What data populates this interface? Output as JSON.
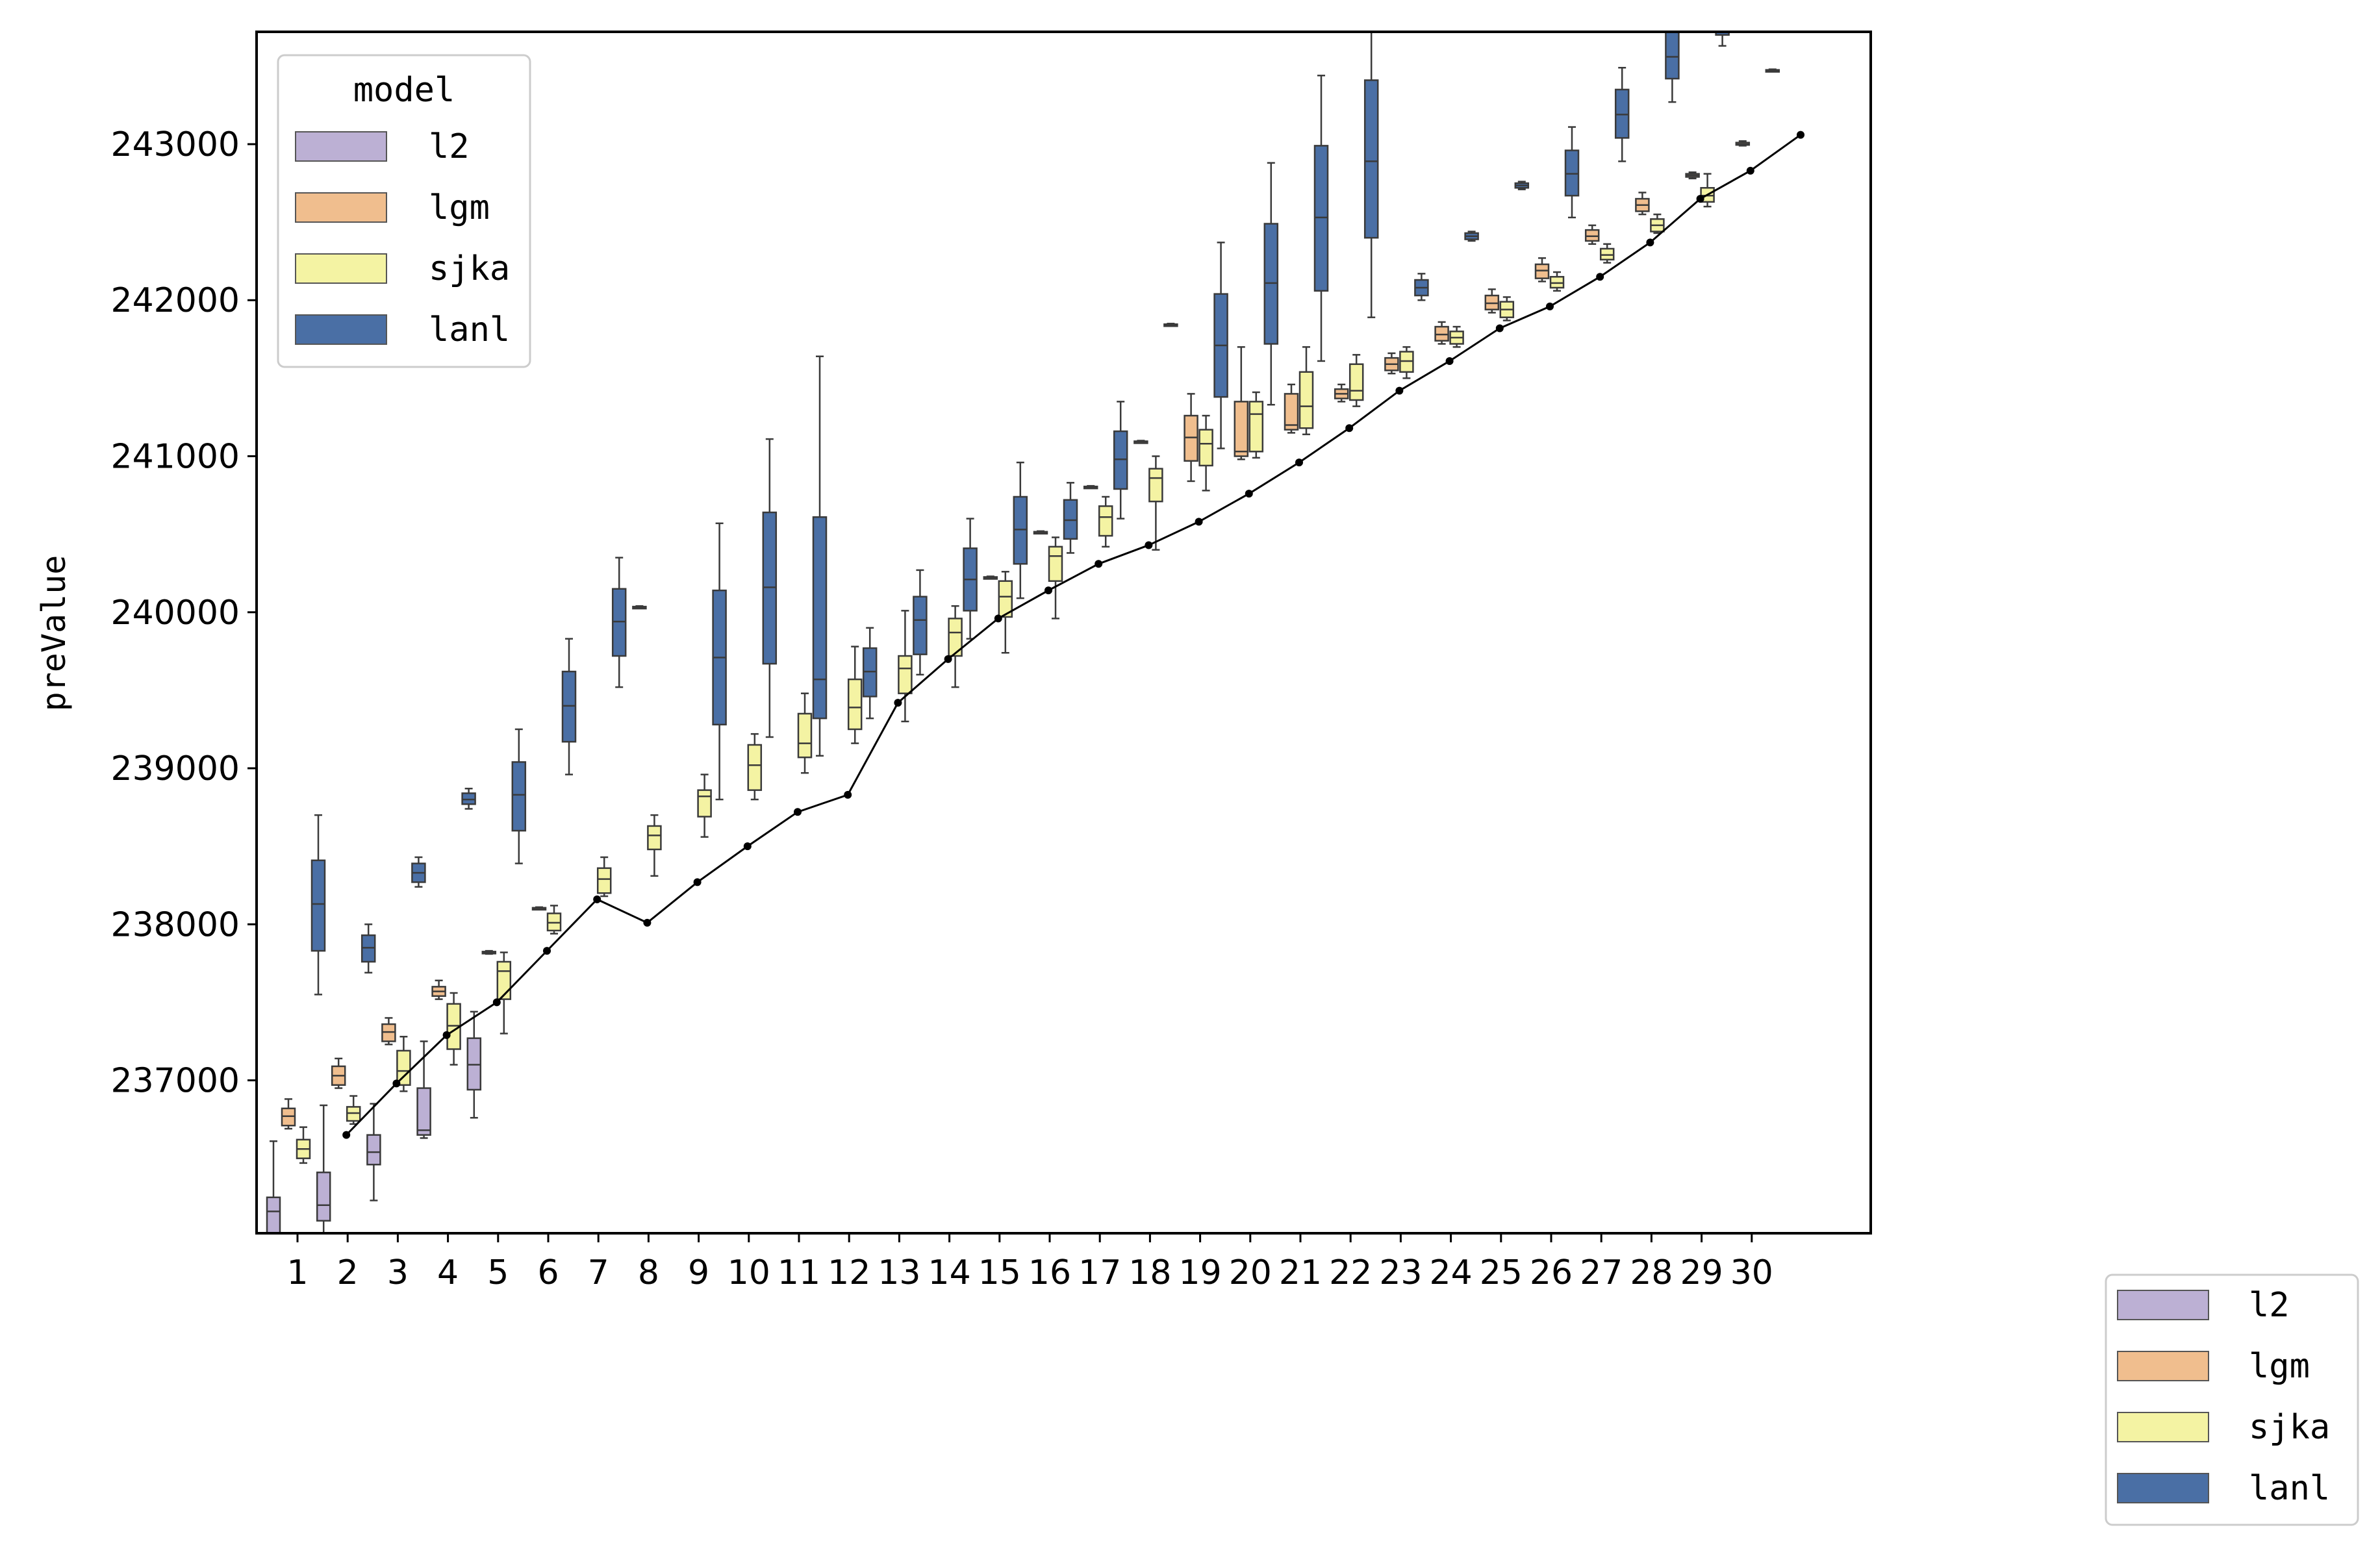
{
  "chart_data": {
    "type": "box",
    "xlabel": "",
    "ylabel": "preValue",
    "ylim": [
      236020,
      243720
    ],
    "yticks": [
      237000,
      238000,
      239000,
      240000,
      241000,
      242000,
      243000
    ],
    "categories": [
      "1",
      "2",
      "3",
      "4",
      "5",
      "6",
      "7",
      "8",
      "9",
      "10",
      "11",
      "12",
      "13",
      "14",
      "15",
      "16",
      "17",
      "18",
      "19",
      "20",
      "21",
      "22",
      "23",
      "24",
      "25",
      "26",
      "27",
      "28",
      "29",
      "30"
    ],
    "legend": {
      "title": "model",
      "placement": "top-left"
    },
    "legend2": {
      "placement": "outside-bottom-right"
    },
    "series": [
      {
        "name": "l2",
        "color": "#bcb0d4",
        "boxes": [
          {
            "x": 1,
            "min": 236000,
            "q1": 236020,
            "median": 236160,
            "q3": 236250,
            "max": 236610
          },
          {
            "x": 2,
            "min": 235990,
            "q1": 236100,
            "median": 236200,
            "q3": 236410,
            "max": 236840
          },
          {
            "x": 3,
            "min": 236230,
            "q1": 236460,
            "median": 236540,
            "q3": 236650,
            "max": 236850
          },
          {
            "x": 4,
            "min": 236630,
            "q1": 236650,
            "median": 236680,
            "q3": 236950,
            "max": 237250
          },
          {
            "x": 5,
            "min": 236760,
            "q1": 236940,
            "median": 237100,
            "q3": 237270,
            "max": 237440
          }
        ]
      },
      {
        "name": "lgm",
        "color": "#f0be8e",
        "boxes": [
          {
            "x": 1,
            "min": 236690,
            "q1": 236710,
            "median": 236770,
            "q3": 236820,
            "max": 236880
          },
          {
            "x": 2,
            "min": 236950,
            "q1": 236970,
            "median": 237030,
            "q3": 237090,
            "max": 237140
          },
          {
            "x": 3,
            "min": 237230,
            "q1": 237250,
            "median": 237310,
            "q3": 237360,
            "max": 237400
          },
          {
            "x": 4,
            "min": 237520,
            "q1": 237540,
            "median": 237570,
            "q3": 237600,
            "max": 237640
          },
          {
            "x": 5,
            "min": 237810,
            "q1": 237815,
            "median": 237820,
            "q3": 237825,
            "max": 237830
          },
          {
            "x": 6,
            "min": 238095,
            "q1": 238100,
            "median": 238103,
            "q3": 238106,
            "max": 238110
          },
          {
            "x": 8,
            "min": 240025,
            "q1": 240030,
            "median": 240033,
            "q3": 240036,
            "max": 240040
          },
          {
            "x": 15,
            "min": 240215,
            "q1": 240220,
            "median": 240223,
            "q3": 240226,
            "max": 240230
          },
          {
            "x": 16,
            "min": 240505,
            "q1": 240510,
            "median": 240513,
            "q3": 240516,
            "max": 240520
          },
          {
            "x": 17,
            "min": 240795,
            "q1": 240800,
            "median": 240803,
            "q3": 240806,
            "max": 240810
          },
          {
            "x": 18,
            "min": 241085,
            "q1": 241090,
            "median": 241093,
            "q3": 241096,
            "max": 241100
          },
          {
            "x": 19,
            "min": 240840,
            "q1": 240970,
            "median": 241120,
            "q3": 241260,
            "max": 241400
          },
          {
            "x": 20,
            "min": 240980,
            "q1": 241000,
            "median": 241030,
            "q3": 241350,
            "max": 241700
          },
          {
            "x": 21,
            "min": 241150,
            "q1": 241170,
            "median": 241200,
            "q3": 241400,
            "max": 241460
          },
          {
            "x": 22,
            "min": 241350,
            "q1": 241370,
            "median": 241400,
            "q3": 241430,
            "max": 241460
          },
          {
            "x": 23,
            "min": 241530,
            "q1": 241550,
            "median": 241590,
            "q3": 241630,
            "max": 241660
          },
          {
            "x": 24,
            "min": 241720,
            "q1": 241740,
            "median": 241780,
            "q3": 241830,
            "max": 241860
          },
          {
            "x": 25,
            "min": 241920,
            "q1": 241940,
            "median": 241980,
            "q3": 242030,
            "max": 242070
          },
          {
            "x": 26,
            "min": 242120,
            "q1": 242140,
            "median": 242190,
            "q3": 242230,
            "max": 242270
          },
          {
            "x": 27,
            "min": 242360,
            "q1": 242380,
            "median": 242410,
            "q3": 242450,
            "max": 242480
          },
          {
            "x": 28,
            "min": 242550,
            "q1": 242570,
            "median": 242610,
            "q3": 242650,
            "max": 242690
          },
          {
            "x": 29,
            "min": 242780,
            "q1": 242790,
            "median": 242800,
            "q3": 242810,
            "max": 242820
          },
          {
            "x": 30,
            "min": 242990,
            "q1": 242995,
            "median": 243000,
            "q3": 243010,
            "max": 243020
          }
        ]
      },
      {
        "name": "sjka",
        "color": "#f4f3a3",
        "boxes": [
          {
            "x": 1,
            "min": 236470,
            "q1": 236500,
            "median": 236560,
            "q3": 236620,
            "max": 236700
          },
          {
            "x": 2,
            "min": 236720,
            "q1": 236740,
            "median": 236790,
            "q3": 236830,
            "max": 236900
          },
          {
            "x": 3,
            "min": 236930,
            "q1": 236970,
            "median": 237060,
            "q3": 237190,
            "max": 237280
          },
          {
            "x": 4,
            "min": 237100,
            "q1": 237200,
            "median": 237350,
            "q3": 237490,
            "max": 237560
          },
          {
            "x": 5,
            "min": 237300,
            "q1": 237520,
            "median": 237700,
            "q3": 237760,
            "max": 237820
          },
          {
            "x": 6,
            "min": 237940,
            "q1": 237960,
            "median": 238010,
            "q3": 238070,
            "max": 238120
          },
          {
            "x": 7,
            "min": 238180,
            "q1": 238200,
            "median": 238290,
            "q3": 238360,
            "max": 238430
          },
          {
            "x": 8,
            "min": 238310,
            "q1": 238480,
            "median": 238570,
            "q3": 238630,
            "max": 238700
          },
          {
            "x": 9,
            "min": 238560,
            "q1": 238690,
            "median": 238820,
            "q3": 238860,
            "max": 238960
          },
          {
            "x": 10,
            "min": 238800,
            "q1": 238860,
            "median": 239020,
            "q3": 239150,
            "max": 239220
          },
          {
            "x": 11,
            "min": 238970,
            "q1": 239070,
            "median": 239160,
            "q3": 239350,
            "max": 239480
          },
          {
            "x": 12,
            "min": 239160,
            "q1": 239250,
            "median": 239390,
            "q3": 239570,
            "max": 239780
          },
          {
            "x": 13,
            "min": 239300,
            "q1": 239480,
            "median": 239640,
            "q3": 239720,
            "max": 240010
          },
          {
            "x": 14,
            "min": 239520,
            "q1": 239720,
            "median": 239870,
            "q3": 239960,
            "max": 240040
          },
          {
            "x": 15,
            "min": 239740,
            "q1": 239970,
            "median": 240100,
            "q3": 240200,
            "max": 240260
          },
          {
            "x": 16,
            "min": 239960,
            "q1": 240200,
            "median": 240360,
            "q3": 240420,
            "max": 240480
          },
          {
            "x": 17,
            "min": 240420,
            "q1": 240490,
            "median": 240610,
            "q3": 240680,
            "max": 240740
          },
          {
            "x": 18,
            "min": 240400,
            "q1": 240710,
            "median": 240860,
            "q3": 240920,
            "max": 241000
          },
          {
            "x": 19,
            "min": 240780,
            "q1": 240940,
            "median": 241080,
            "q3": 241170,
            "max": 241260
          },
          {
            "x": 20,
            "min": 240990,
            "q1": 241030,
            "median": 241270,
            "q3": 241350,
            "max": 241410
          },
          {
            "x": 21,
            "min": 241140,
            "q1": 241180,
            "median": 241320,
            "q3": 241540,
            "max": 241700
          },
          {
            "x": 22,
            "min": 241320,
            "q1": 241360,
            "median": 241420,
            "q3": 241590,
            "max": 241650
          },
          {
            "x": 23,
            "min": 241500,
            "q1": 241540,
            "median": 241610,
            "q3": 241670,
            "max": 241700
          },
          {
            "x": 24,
            "min": 241700,
            "q1": 241720,
            "median": 241760,
            "q3": 241800,
            "max": 241830
          },
          {
            "x": 25,
            "min": 241870,
            "q1": 241890,
            "median": 241940,
            "q3": 241990,
            "max": 242020
          },
          {
            "x": 26,
            "min": 242060,
            "q1": 242080,
            "median": 242110,
            "q3": 242150,
            "max": 242180
          },
          {
            "x": 27,
            "min": 242240,
            "q1": 242260,
            "median": 242290,
            "q3": 242330,
            "max": 242360
          },
          {
            "x": 28,
            "min": 242430,
            "q1": 242440,
            "median": 242480,
            "q3": 242520,
            "max": 242550
          },
          {
            "x": 29,
            "min": 242600,
            "q1": 242630,
            "median": 242670,
            "q3": 242720,
            "max": 242810
          }
        ]
      },
      {
        "name": "lanl",
        "color": "#4a6fa5",
        "boxes": [
          {
            "x": 1,
            "min": 237550,
            "q1": 237830,
            "median": 238130,
            "q3": 238410,
            "max": 238700
          },
          {
            "x": 2,
            "min": 237690,
            "q1": 237760,
            "median": 237850,
            "q3": 237930,
            "max": 238000
          },
          {
            "x": 3,
            "min": 238240,
            "q1": 238270,
            "median": 238330,
            "q3": 238390,
            "max": 238430
          },
          {
            "x": 4,
            "min": 238740,
            "q1": 238770,
            "median": 238800,
            "q3": 238840,
            "max": 238870
          },
          {
            "x": 5,
            "min": 238390,
            "q1": 238600,
            "median": 238830,
            "q3": 239040,
            "max": 239250
          },
          {
            "x": 6,
            "min": 238960,
            "q1": 239170,
            "median": 239400,
            "q3": 239620,
            "max": 239830
          },
          {
            "x": 7,
            "min": 239520,
            "q1": 239720,
            "median": 239940,
            "q3": 240150,
            "max": 240350
          },
          {
            "x": 9,
            "min": 238800,
            "q1": 239280,
            "median": 239710,
            "q3": 240140,
            "max": 240570
          },
          {
            "x": 10,
            "min": 239200,
            "q1": 239670,
            "median": 240160,
            "q3": 240640,
            "max": 241110
          },
          {
            "x": 11,
            "min": 239080,
            "q1": 239320,
            "median": 239570,
            "q3": 240610,
            "max": 241640
          },
          {
            "x": 12,
            "min": 239320,
            "q1": 239460,
            "median": 239620,
            "q3": 239770,
            "max": 239900
          },
          {
            "x": 13,
            "min": 239600,
            "q1": 239730,
            "median": 239950,
            "q3": 240100,
            "max": 240270
          },
          {
            "x": 14,
            "min": 239830,
            "q1": 240010,
            "median": 240210,
            "q3": 240410,
            "max": 240600
          },
          {
            "x": 15,
            "min": 240090,
            "q1": 240310,
            "median": 240530,
            "q3": 240740,
            "max": 240960
          },
          {
            "x": 16,
            "min": 240380,
            "q1": 240470,
            "median": 240590,
            "q3": 240720,
            "max": 240830
          },
          {
            "x": 17,
            "min": 240600,
            "q1": 240790,
            "median": 240980,
            "q3": 241160,
            "max": 241350
          },
          {
            "x": 18,
            "min": 241835,
            "q1": 241840,
            "median": 241843,
            "q3": 241846,
            "max": 241850
          },
          {
            "x": 19,
            "min": 241050,
            "q1": 241380,
            "median": 241710,
            "q3": 242040,
            "max": 242370
          },
          {
            "x": 20,
            "min": 241330,
            "q1": 241720,
            "median": 242110,
            "q3": 242490,
            "max": 242880
          },
          {
            "x": 21,
            "min": 241610,
            "q1": 242060,
            "median": 242530,
            "q3": 242990,
            "max": 243440
          },
          {
            "x": 22,
            "min": 241890,
            "q1": 242400,
            "median": 242890,
            "q3": 243410,
            "max": 243920
          },
          {
            "x": 23,
            "min": 242000,
            "q1": 242030,
            "median": 242080,
            "q3": 242130,
            "max": 242170
          },
          {
            "x": 24,
            "min": 242380,
            "q1": 242390,
            "median": 242410,
            "q3": 242430,
            "max": 242440
          },
          {
            "x": 25,
            "min": 242710,
            "q1": 242720,
            "median": 242735,
            "q3": 242750,
            "max": 242760
          },
          {
            "x": 26,
            "min": 242530,
            "q1": 242670,
            "median": 242810,
            "q3": 242960,
            "max": 243110
          },
          {
            "x": 27,
            "min": 242890,
            "q1": 243040,
            "median": 243190,
            "q3": 243350,
            "max": 243490
          },
          {
            "x": 28,
            "min": 243270,
            "q1": 243420,
            "median": 243560,
            "q3": 243740,
            "max": 243900
          },
          {
            "x": 29,
            "min": 243630,
            "q1": 243700,
            "median": 243780,
            "q3": 243870,
            "max": 243950
          },
          {
            "x": 30,
            "min": 243465,
            "q1": 243470,
            "median": 243473,
            "q3": 243476,
            "max": 243480
          }
        ]
      }
    ],
    "line": {
      "color": "#000000",
      "points": [
        {
          "x": 2,
          "y": 236650
        },
        {
          "x": 3,
          "y": 236980
        },
        {
          "x": 4,
          "y": 237290
        },
        {
          "x": 5,
          "y": 237500
        },
        {
          "x": 6,
          "y": 237830
        },
        {
          "x": 7,
          "y": 238160
        },
        {
          "x": 8,
          "y": 238010
        },
        {
          "x": 9,
          "y": 238270
        },
        {
          "x": 10,
          "y": 238500
        },
        {
          "x": 11,
          "y": 238720
        },
        {
          "x": 12,
          "y": 238830
        },
        {
          "x": 13,
          "y": 239420
        },
        {
          "x": 14,
          "y": 239700
        },
        {
          "x": 15,
          "y": 239960
        },
        {
          "x": 16,
          "y": 240140
        },
        {
          "x": 17,
          "y": 240310
        },
        {
          "x": 18,
          "y": 240430
        },
        {
          "x": 19,
          "y": 240580
        },
        {
          "x": 20,
          "y": 240760
        },
        {
          "x": 21,
          "y": 240960
        },
        {
          "x": 22,
          "y": 241180
        },
        {
          "x": 23,
          "y": 241420
        },
        {
          "x": 24,
          "y": 241610
        },
        {
          "x": 25,
          "y": 241820
        },
        {
          "x": 26,
          "y": 241960
        },
        {
          "x": 27,
          "y": 242150
        },
        {
          "x": 28,
          "y": 242370
        },
        {
          "x": 29,
          "y": 242650
        },
        {
          "x": 30,
          "y": 242830
        },
        {
          "x": 31,
          "y": 243060
        }
      ]
    }
  }
}
